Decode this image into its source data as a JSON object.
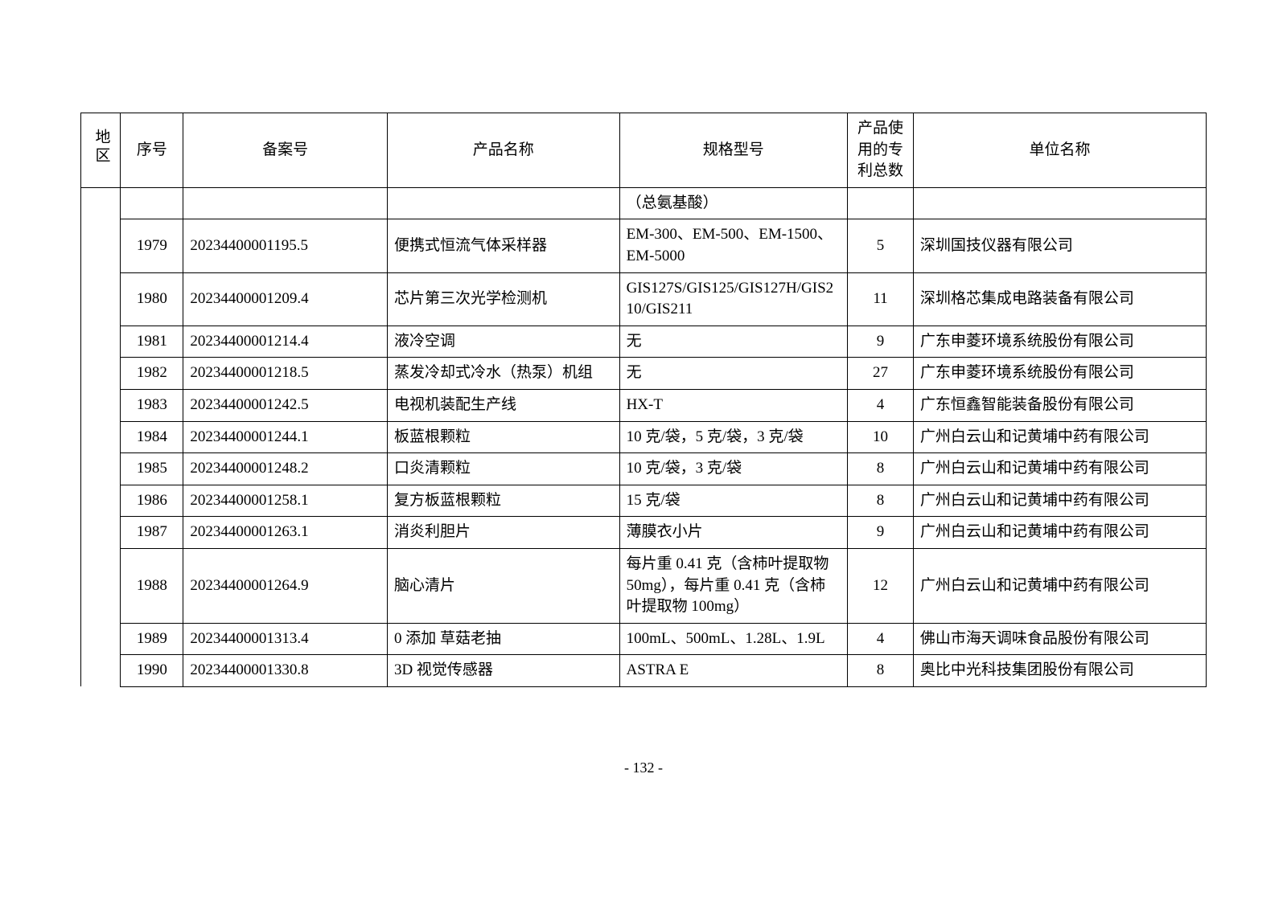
{
  "headers": {
    "region": "地区",
    "seq": "序号",
    "record": "备案号",
    "product": "产品名称",
    "spec": "规格型号",
    "patent": "产品使用的专利总数",
    "unit": "单位名称"
  },
  "partial_row": {
    "spec": "（总氨基酸）"
  },
  "rows": [
    {
      "seq": "1979",
      "record": "20234400001195.5",
      "product": "便携式恒流气体采样器",
      "spec": "EM-300、EM-500、EM-1500、EM-5000",
      "patent": "5",
      "unit": "深圳国技仪器有限公司"
    },
    {
      "seq": "1980",
      "record": "20234400001209.4",
      "product": "芯片第三次光学检测机",
      "spec": "GIS127S/GIS125/GIS127H/GIS210/GIS211",
      "patent": "11",
      "unit": "深圳格芯集成电路装备有限公司"
    },
    {
      "seq": "1981",
      "record": "20234400001214.4",
      "product": "液冷空调",
      "spec": "无",
      "patent": "9",
      "unit": "广东申菱环境系统股份有限公司"
    },
    {
      "seq": "1982",
      "record": "20234400001218.5",
      "product": "蒸发冷却式冷水（热泵）机组",
      "spec": "无",
      "patent": "27",
      "unit": "广东申菱环境系统股份有限公司"
    },
    {
      "seq": "1983",
      "record": "20234400001242.5",
      "product": "电视机装配生产线",
      "spec": "HX-T",
      "patent": "4",
      "unit": "广东恒鑫智能装备股份有限公司"
    },
    {
      "seq": "1984",
      "record": "20234400001244.1",
      "product": "板蓝根颗粒",
      "spec": "10 克/袋，5 克/袋，3 克/袋",
      "patent": "10",
      "unit": "广州白云山和记黄埔中药有限公司"
    },
    {
      "seq": "1985",
      "record": "20234400001248.2",
      "product": "口炎清颗粒",
      "spec": "10 克/袋，3 克/袋",
      "patent": "8",
      "unit": "广州白云山和记黄埔中药有限公司"
    },
    {
      "seq": "1986",
      "record": "20234400001258.1",
      "product": "复方板蓝根颗粒",
      "spec": "15 克/袋",
      "patent": "8",
      "unit": "广州白云山和记黄埔中药有限公司"
    },
    {
      "seq": "1987",
      "record": "20234400001263.1",
      "product": "消炎利胆片",
      "spec": "薄膜衣小片",
      "patent": "9",
      "unit": "广州白云山和记黄埔中药有限公司"
    },
    {
      "seq": "1988",
      "record": "20234400001264.9",
      "product": "脑心清片",
      "spec": "每片重 0.41 克（含柿叶提取物 50mg），每片重 0.41 克（含柿叶提取物 100mg）",
      "patent": "12",
      "unit": "广州白云山和记黄埔中药有限公司"
    },
    {
      "seq": "1989",
      "record": "20234400001313.4",
      "product": "0 添加 草菇老抽",
      "spec": "100mL、500mL、1.28L、1.9L",
      "patent": "4",
      "unit": "佛山市海天调味食品股份有限公司"
    },
    {
      "seq": "1990",
      "record": "20234400001330.8",
      "product": "3D 视觉传感器",
      "spec": "ASTRA E",
      "patent": "8",
      "unit": "奥比中光科技集团股份有限公司"
    }
  ],
  "page_number": "- 132 -"
}
